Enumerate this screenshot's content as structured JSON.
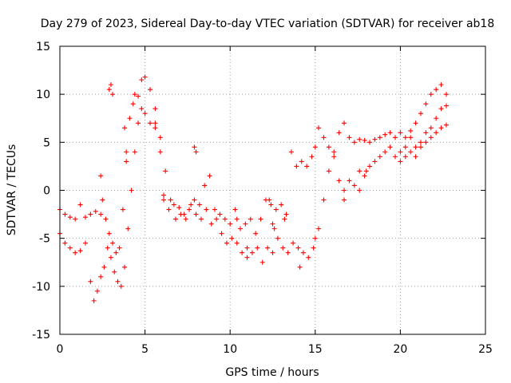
{
  "chart_data": {
    "type": "scatter",
    "title": "Day 279 of 2023, Sidereal Day-to-day VTEC variation (SDTVAR) for receiver ab18",
    "xlabel": "GPS time / hours",
    "ylabel": "SDTVAR / TECUs",
    "xlim": [
      0,
      25
    ],
    "ylim": [
      -15,
      15
    ],
    "xticks": [
      0,
      5,
      10,
      15,
      20,
      25
    ],
    "xtick_labels": [
      "0",
      "5",
      "10",
      "15",
      "20",
      "25"
    ],
    "yticks": [
      -15,
      -10,
      -5,
      0,
      5,
      10,
      15
    ],
    "ytick_labels": [
      "-15",
      "-10",
      "-5",
      "0",
      "5",
      "10",
      "15"
    ],
    "grid": true,
    "marker": "+",
    "color": "#ff0000",
    "series": [
      {
        "name": "upper",
        "points": [
          [
            0.0,
            -2.0
          ],
          [
            0.3,
            -2.5
          ],
          [
            0.6,
            -2.8
          ],
          [
            0.9,
            -3.0
          ],
          [
            1.2,
            -1.5
          ],
          [
            1.5,
            -2.8
          ],
          [
            1.8,
            -2.5
          ],
          [
            2.1,
            -2.2
          ],
          [
            2.4,
            -2.5
          ],
          [
            2.7,
            -3.0
          ],
          [
            2.9,
            -4.5
          ],
          [
            3.1,
            -5.5
          ],
          [
            3.3,
            -6.5
          ],
          [
            3.5,
            -6.0
          ],
          [
            3.7,
            -2.0
          ],
          [
            3.9,
            4.0
          ],
          [
            4.1,
            7.5
          ],
          [
            4.3,
            9.0
          ],
          [
            4.6,
            9.8
          ],
          [
            4.8,
            11.5
          ],
          [
            5.0,
            11.8
          ],
          [
            5.3,
            10.5
          ],
          [
            5.6,
            8.5
          ],
          [
            5.9,
            4.0
          ],
          [
            6.1,
            -1.0
          ],
          [
            6.4,
            -2.0
          ],
          [
            6.7,
            -1.5
          ],
          [
            7.0,
            -1.8
          ],
          [
            7.3,
            -2.5
          ],
          [
            7.6,
            -2.0
          ],
          [
            7.9,
            -1.0
          ],
          [
            8.2,
            -1.5
          ],
          [
            8.5,
            0.5
          ],
          [
            8.8,
            1.5
          ],
          [
            9.1,
            -2.0
          ],
          [
            9.4,
            -2.5
          ],
          [
            9.7,
            -3.0
          ],
          [
            10.0,
            -3.5
          ],
          [
            10.3,
            -2.0
          ],
          [
            10.6,
            -4.0
          ],
          [
            10.9,
            -3.5
          ],
          [
            11.2,
            -3.0
          ],
          [
            11.5,
            -4.5
          ],
          [
            11.8,
            -3.0
          ],
          [
            12.1,
            -1.0
          ],
          [
            12.4,
            -1.5
          ],
          [
            12.7,
            -2.0
          ],
          [
            13.0,
            -1.5
          ],
          [
            13.3,
            -2.5
          ],
          [
            13.6,
            4.0
          ],
          [
            13.9,
            2.5
          ],
          [
            14.2,
            3.0
          ],
          [
            14.5,
            2.5
          ],
          [
            14.8,
            3.5
          ],
          [
            15.0,
            4.5
          ],
          [
            15.2,
            6.5
          ],
          [
            15.5,
            5.5
          ],
          [
            15.8,
            4.5
          ],
          [
            16.1,
            4.0
          ],
          [
            16.4,
            6.0
          ],
          [
            16.7,
            7.0
          ],
          [
            17.0,
            5.5
          ],
          [
            17.3,
            5.0
          ],
          [
            17.6,
            5.3
          ],
          [
            17.9,
            5.2
          ],
          [
            18.2,
            5.0
          ],
          [
            18.5,
            5.3
          ],
          [
            18.8,
            5.5
          ],
          [
            19.1,
            5.8
          ],
          [
            19.4,
            6.0
          ],
          [
            19.7,
            5.5
          ],
          [
            20.0,
            6.0
          ],
          [
            20.3,
            5.5
          ],
          [
            20.6,
            6.2
          ],
          [
            20.9,
            7.0
          ],
          [
            21.2,
            8.0
          ],
          [
            21.5,
            9.0
          ],
          [
            21.8,
            10.0
          ],
          [
            22.1,
            10.5
          ],
          [
            22.4,
            11.0
          ],
          [
            22.7,
            10.0
          ]
        ]
      },
      {
        "name": "lower",
        "points": [
          [
            0.0,
            -4.5
          ],
          [
            0.3,
            -5.5
          ],
          [
            0.6,
            -6.0
          ],
          [
            0.9,
            -6.5
          ],
          [
            1.2,
            -6.3
          ],
          [
            1.5,
            -5.5
          ],
          [
            1.8,
            -9.5
          ],
          [
            2.0,
            -11.5
          ],
          [
            2.2,
            -10.5
          ],
          [
            2.4,
            -9.0
          ],
          [
            2.6,
            -8.0
          ],
          [
            2.8,
            -6.0
          ],
          [
            3.0,
            -7.0
          ],
          [
            3.2,
            -8.5
          ],
          [
            3.4,
            -9.5
          ],
          [
            3.6,
            -10.0
          ],
          [
            3.8,
            -8.0
          ],
          [
            4.0,
            -4.0
          ],
          [
            4.2,
            0.0
          ],
          [
            4.4,
            4.0
          ],
          [
            4.6,
            7.0
          ],
          [
            4.8,
            8.5
          ],
          [
            5.0,
            8.0
          ],
          [
            5.3,
            7.0
          ],
          [
            5.6,
            6.5
          ],
          [
            5.9,
            5.5
          ],
          [
            6.2,
            2.0
          ],
          [
            6.5,
            -1.0
          ],
          [
            6.8,
            -3.0
          ],
          [
            7.1,
            -2.5
          ],
          [
            7.4,
            -3.0
          ],
          [
            7.7,
            -1.5
          ],
          [
            8.0,
            -2.5
          ],
          [
            8.3,
            -3.0
          ],
          [
            8.6,
            -2.0
          ],
          [
            8.9,
            -3.5
          ],
          [
            9.2,
            -3.0
          ],
          [
            9.5,
            -4.5
          ],
          [
            9.8,
            -5.5
          ],
          [
            10.1,
            -5.0
          ],
          [
            10.4,
            -5.5
          ],
          [
            10.7,
            -6.5
          ],
          [
            11.0,
            -7.0
          ],
          [
            11.3,
            -6.5
          ],
          [
            11.6,
            -6.0
          ],
          [
            11.9,
            -7.5
          ],
          [
            12.2,
            -6.0
          ],
          [
            12.5,
            -6.5
          ],
          [
            12.8,
            -5.0
          ],
          [
            13.1,
            -6.0
          ],
          [
            13.4,
            -6.5
          ],
          [
            13.7,
            -5.5
          ],
          [
            14.0,
            -6.0
          ],
          [
            14.3,
            -6.5
          ],
          [
            14.6,
            -7.0
          ],
          [
            14.9,
            -6.0
          ],
          [
            15.2,
            -4.0
          ],
          [
            15.5,
            -1.0
          ],
          [
            15.8,
            2.0
          ],
          [
            16.1,
            3.5
          ],
          [
            16.4,
            1.0
          ],
          [
            16.7,
            0.0
          ],
          [
            17.0,
            1.0
          ],
          [
            17.3,
            0.5
          ],
          [
            17.6,
            0.0
          ],
          [
            17.9,
            1.5
          ],
          [
            18.2,
            2.5
          ],
          [
            18.5,
            3.0
          ],
          [
            18.8,
            3.5
          ],
          [
            19.1,
            4.0
          ],
          [
            19.4,
            4.5
          ],
          [
            19.7,
            3.5
          ],
          [
            20.0,
            4.0
          ],
          [
            20.3,
            4.5
          ],
          [
            20.6,
            5.5
          ],
          [
            20.9,
            4.5
          ],
          [
            21.2,
            5.0
          ],
          [
            21.5,
            6.0
          ],
          [
            21.8,
            6.5
          ],
          [
            22.1,
            7.5
          ],
          [
            22.4,
            8.5
          ],
          [
            22.7,
            8.8
          ]
        ]
      },
      {
        "name": "third",
        "points": [
          [
            20.0,
            3.0
          ],
          [
            20.3,
            3.5
          ],
          [
            20.6,
            4.0
          ],
          [
            20.9,
            3.5
          ],
          [
            21.2,
            4.5
          ],
          [
            21.5,
            5.0
          ],
          [
            21.8,
            5.5
          ],
          [
            22.1,
            6.0
          ],
          [
            22.4,
            6.5
          ],
          [
            22.7,
            6.8
          ]
        ]
      },
      {
        "name": "scatter",
        "points": [
          [
            2.4,
            1.5
          ],
          [
            2.5,
            -1.0
          ],
          [
            2.9,
            10.5
          ],
          [
            3.0,
            11.0
          ],
          [
            3.1,
            10.0
          ],
          [
            3.8,
            6.5
          ],
          [
            3.9,
            3.0
          ],
          [
            4.4,
            10.0
          ],
          [
            5.6,
            7.0
          ],
          [
            6.1,
            -0.5
          ],
          [
            7.9,
            4.5
          ],
          [
            8.0,
            4.0
          ],
          [
            10.4,
            -3.0
          ],
          [
            11.0,
            -6.0
          ],
          [
            12.3,
            -1.0
          ],
          [
            12.5,
            -3.5
          ],
          [
            12.6,
            -4.0
          ],
          [
            13.2,
            -3.0
          ],
          [
            14.1,
            -8.0
          ],
          [
            15.0,
            -5.0
          ],
          [
            16.7,
            -1.0
          ],
          [
            17.6,
            2.0
          ],
          [
            18.0,
            2.0
          ]
        ]
      }
    ]
  }
}
